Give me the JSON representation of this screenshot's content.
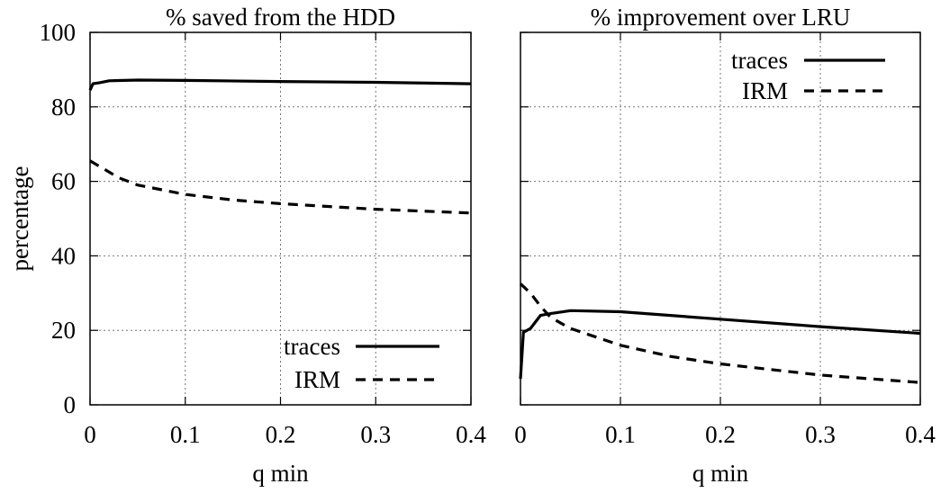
{
  "chart_data": [
    {
      "type": "line",
      "title": "% saved from the HDD",
      "xlabel": "q min",
      "ylabel": "percentage",
      "xlim": [
        0,
        0.4
      ],
      "ylim": [
        0,
        100
      ],
      "xticks": [
        "0",
        "0.1",
        "0.2",
        "0.3",
        "0.4"
      ],
      "yticks": [
        "0",
        "20",
        "40",
        "60",
        "80",
        "100"
      ],
      "grid": true,
      "legend": "bottom-right",
      "series": [
        {
          "name": "traces",
          "style": "solid",
          "x": [
            0,
            0.003,
            0.01,
            0.02,
            0.05,
            0.1,
            0.2,
            0.3,
            0.4
          ],
          "y": [
            84.5,
            86.2,
            86.5,
            87.0,
            87.2,
            87.1,
            86.8,
            86.6,
            86.2
          ]
        },
        {
          "name": "IRM",
          "style": "dashed",
          "x": [
            0,
            0.01,
            0.02,
            0.03,
            0.05,
            0.1,
            0.15,
            0.2,
            0.3,
            0.4
          ],
          "y": [
            65.5,
            64.0,
            62.5,
            61.0,
            59.0,
            56.5,
            55.0,
            54.0,
            52.5,
            51.5
          ]
        }
      ]
    },
    {
      "type": "line",
      "title": "% improvement over LRU",
      "xlabel": "q min",
      "ylabel": "",
      "xlim": [
        0,
        0.4
      ],
      "ylim": [
        0,
        100
      ],
      "xticks": [
        "0",
        "0.1",
        "0.2",
        "0.3",
        "0.4"
      ],
      "yticks": [],
      "grid": true,
      "legend": "top-right",
      "series": [
        {
          "name": "traces",
          "style": "solid",
          "x": [
            0,
            0.003,
            0.01,
            0.02,
            0.03,
            0.05,
            0.1,
            0.2,
            0.3,
            0.4
          ],
          "y": [
            7,
            19.5,
            20.5,
            24.0,
            24.5,
            25.3,
            25.0,
            23.0,
            21.0,
            19.2
          ]
        },
        {
          "name": "IRM",
          "style": "dashed",
          "x": [
            0,
            0.01,
            0.02,
            0.03,
            0.05,
            0.1,
            0.15,
            0.2,
            0.3,
            0.4
          ],
          "y": [
            32.5,
            30.0,
            26.5,
            23.5,
            20.5,
            16.0,
            13.0,
            11.0,
            8.0,
            6.0
          ]
        }
      ]
    }
  ]
}
